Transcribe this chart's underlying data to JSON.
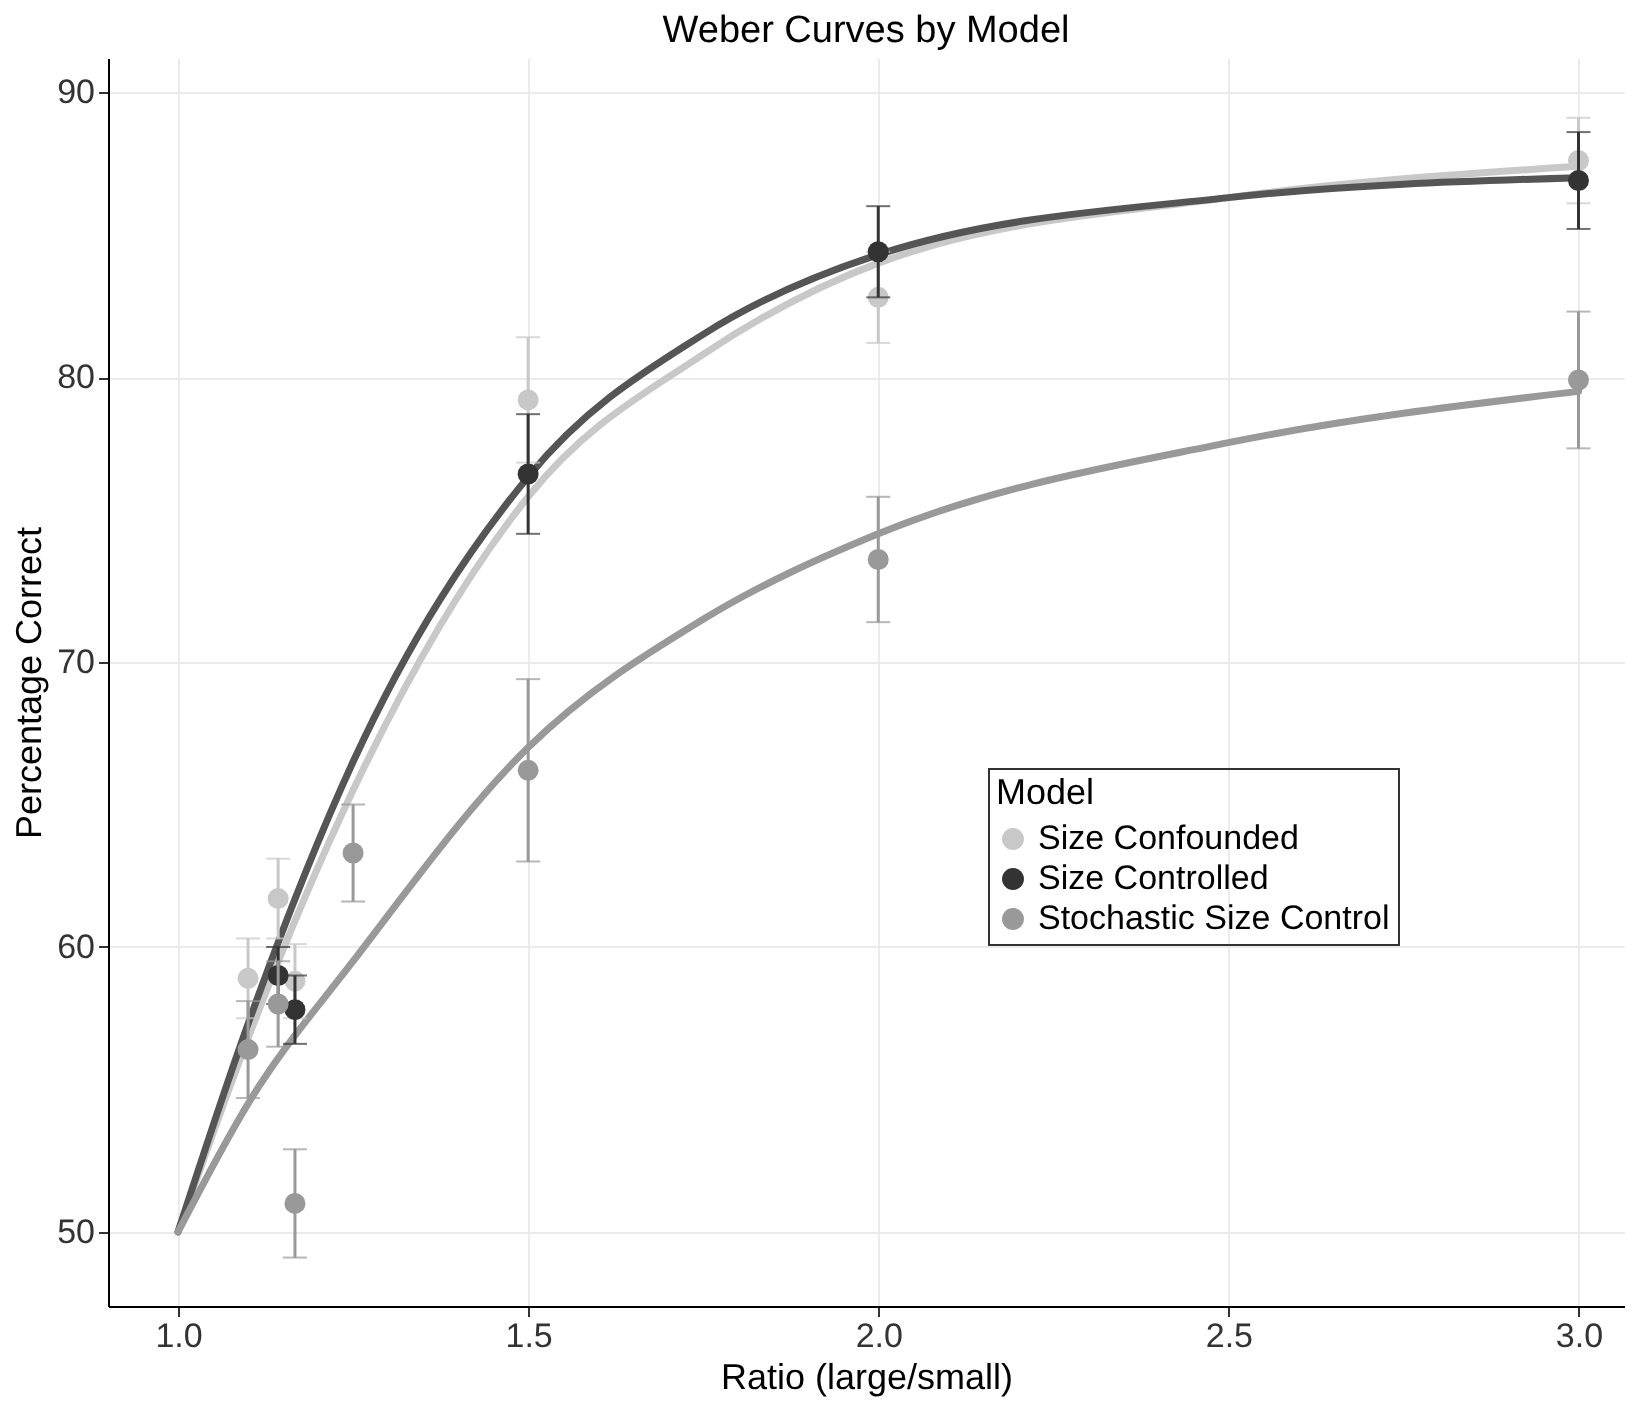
{
  "chart_data": {
    "type": "scatter",
    "title": "Weber Curves by Model",
    "xlabel": "Ratio (large/small)",
    "ylabel": "Percentage Correct",
    "legend_title": "Model",
    "legend": "right",
    "grid": true,
    "xlim": [
      0.9,
      3.065
    ],
    "ylim": [
      47.4,
      91.2
    ],
    "xticks": [
      {
        "value": 1,
        "label": "1.0"
      },
      {
        "value": 1.5,
        "label": "1.5"
      },
      {
        "value": 2,
        "label": "2.0"
      },
      {
        "value": 2.5,
        "label": "2.5"
      },
      {
        "value": 3,
        "label": "3.0"
      }
    ],
    "yticks": [
      50,
      60,
      70,
      80,
      90
    ],
    "series": [
      {
        "name": "Size Confounded",
        "color": "#c8c8c8",
        "marker": "circle",
        "x": [
          1.1,
          1.143,
          1.167,
          1.5,
          2,
          3
        ],
        "values": [
          58.9,
          61.7,
          58.8,
          79.2,
          82.8,
          87.6
        ],
        "errors": [
          1.4,
          1.4,
          1.3,
          2.2,
          1.6,
          1.5
        ]
      },
      {
        "name": "Size Controlled",
        "color": "#333333",
        "marker": "circle",
        "x": [
          1.143,
          1.167,
          1.5,
          2,
          3
        ],
        "values": [
          59.0,
          57.8,
          76.6,
          84.4,
          86.9
        ],
        "errors": [
          1.0,
          1.2,
          2.1,
          1.6,
          1.7
        ]
      },
      {
        "name": "Stochastic Size Control",
        "color": "#999999",
        "marker": "circle",
        "x": [
          1.1,
          1.143,
          1.167,
          1.25,
          1.5,
          2,
          3
        ],
        "values": [
          56.4,
          58.0,
          51.0,
          63.3,
          66.2,
          73.6,
          79.9
        ],
        "errors": [
          1.7,
          1.5,
          1.9,
          1.7,
          3.2,
          2.2,
          2.4
        ]
      },
      {
        "type": "line",
        "color": "#c8c8c8",
        "x": [
          1,
          1.1,
          1.25,
          1.5,
          1.75,
          2,
          2.5,
          3
        ],
        "values": [
          50,
          56.8,
          65.5,
          75.8,
          80.8,
          84.0,
          86.3,
          87.4
        ]
      },
      {
        "type": "line",
        "color": "#555555",
        "x": [
          1,
          1.1,
          1.25,
          1.5,
          1.75,
          2,
          2.5,
          3
        ],
        "values": [
          50,
          57.3,
          66.5,
          76.5,
          81.5,
          84.3,
          86.3,
          87.0
        ]
      },
      {
        "type": "line",
        "color": "#999999",
        "x": [
          1,
          1.1,
          1.25,
          1.5,
          1.75,
          2,
          2.5,
          3
        ],
        "values": [
          50,
          54.5,
          59.5,
          67.0,
          71.5,
          74.5,
          77.7,
          79.5
        ]
      }
    ]
  }
}
